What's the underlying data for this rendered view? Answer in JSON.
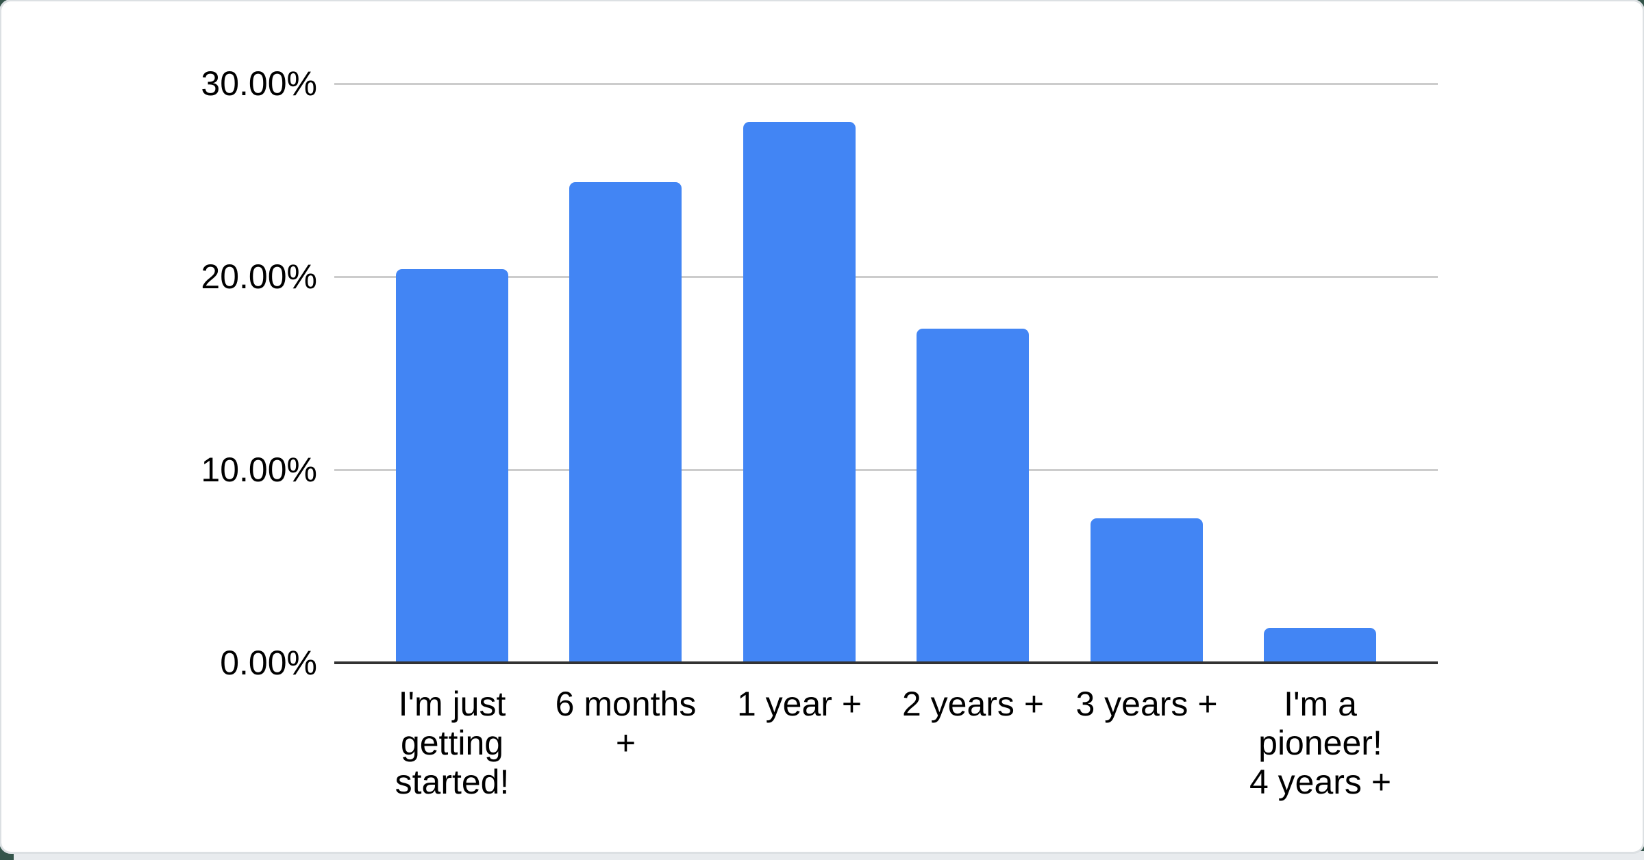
{
  "colors": {
    "page_bg": "#33544a",
    "card_bg": "#ffffff",
    "card_ring": "#dce0e3",
    "bottom_strip": "#e8ebee",
    "bar": "#4285f4",
    "gridline": "#cccccc",
    "baseline": "#333333",
    "text": "#000000"
  },
  "chart_data": {
    "type": "bar",
    "title": "",
    "xlabel": "",
    "ylabel": "",
    "categories": [
      "I'm just getting started!",
      "6 months +",
      "1 year +",
      "2 years +",
      "3 years +",
      "I'm a pioneer! 4 years +"
    ],
    "categories_display": [
      "I'm just\ngetting\nstarted!",
      "6 months\n+",
      "1 year +",
      "2 years +",
      "3 years +",
      "I'm a\npioneer!\n4 years +"
    ],
    "values": [
      20.4,
      24.9,
      28.0,
      17.3,
      7.5,
      1.8
    ],
    "value_unit": "%",
    "ylim": [
      0,
      30
    ],
    "y_ticks": [
      {
        "label": "30.00%",
        "value": 30
      },
      {
        "label": "20.00%",
        "value": 20
      },
      {
        "label": "10.00%",
        "value": 10
      },
      {
        "label": "0.00%",
        "value": 0
      }
    ],
    "gridlines_at": [
      30,
      20,
      10
    ],
    "grid": true,
    "legend_position": "none"
  }
}
